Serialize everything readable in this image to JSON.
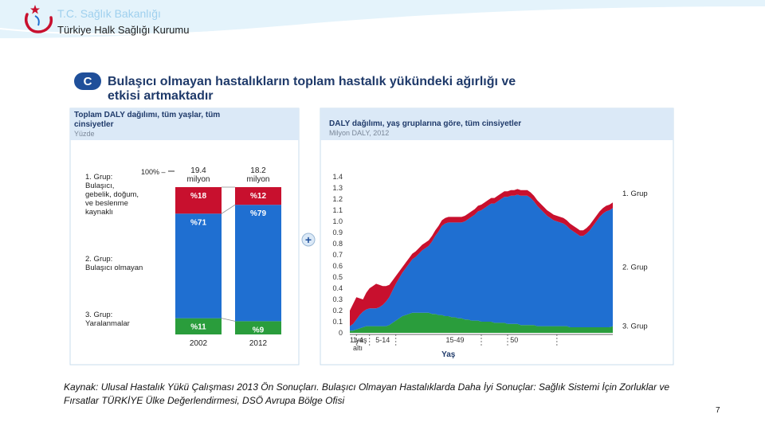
{
  "header": {
    "org_title": "T.C. Sağlık Bakanlığı",
    "org_subtitle": "Türkiye Halk Sağlığı Kurumu"
  },
  "figure": {
    "badge": "C",
    "title_line1": "Bulaşıcı olmayan hastalıkların toplam hastalık yükündeki ağırlığı ve",
    "title_line2": "etkisi artmaktadır",
    "plus_glyph": "+"
  },
  "chart_data": [
    {
      "type": "bar",
      "panel_title_line1": "Toplam DALY dağılımı, tüm yaşlar, tüm",
      "panel_title_line2": "cinsiyetler",
      "panel_unit": "Yüzde",
      "total_label": "100% –",
      "categories": [
        "2002",
        "2012"
      ],
      "totals": [
        "19.4 milyon",
        "18.2 milyon"
      ],
      "total_lines": [
        [
          "19.4",
          "milyon"
        ],
        [
          "18.2",
          "milyon"
        ]
      ],
      "series": [
        {
          "name": "1. Grup: Bulaşıcı, gebelik, doğum, ve beslenme kaynaklı",
          "name_lines": [
            "1. Grup:",
            "Bulaşıcı,",
            "gebelik, doğum,",
            "ve beslenme",
            "kaynaklı"
          ],
          "values": [
            18,
            12
          ],
          "labels": [
            "%18",
            "%12"
          ],
          "color": "#c8102e"
        },
        {
          "name": "2. Grup: Bulaşıcı olmayan",
          "name_lines": [
            "2. Grup:",
            "Bulaşıcı olmayan"
          ],
          "values": [
            71,
            79
          ],
          "labels": [
            "%71",
            "%79"
          ],
          "color": "#1f6fd1"
        },
        {
          "name": "3. Grup: Yaralanmalar",
          "name_lines": [
            "3. Grup:",
            "Yaralanmalar"
          ],
          "values": [
            11,
            9
          ],
          "labels": [
            "%11",
            "%9"
          ],
          "color": "#2a9d3c"
        }
      ]
    },
    {
      "type": "area",
      "panel_title": "DALY dağılımı, yaş gruplarına göre, tüm cinsiyetler",
      "panel_unit": "Milyon DALY, 2012",
      "xlabel": "Yaş",
      "ylim": [
        0,
        1.4
      ],
      "yticks": [
        "0",
        "0.1",
        "0.2",
        "0.3",
        "0.4",
        "0.5",
        "0.6",
        "0.7",
        "0.8",
        "0.9",
        "1.0",
        "1.1",
        "1.2",
        "1.3",
        "1.4"
      ],
      "xtick_labels": [
        {
          "text": "1 yaş",
          "age": 0
        },
        {
          "text": "altı",
          "age": 0
        },
        {
          "text": "1-4",
          "age": 2.5
        },
        {
          "text": "5-14",
          "age": 10
        },
        {
          "text": "15-49",
          "age": 32
        },
        {
          "text": "50",
          "age": 50
        }
      ],
      "x": [
        0,
        1,
        2,
        3,
        4,
        5,
        6,
        7,
        8,
        9,
        10,
        11,
        12,
        13,
        14,
        15,
        16,
        17,
        18,
        19,
        20,
        21,
        22,
        23,
        24,
        25,
        26,
        27,
        28,
        29,
        30,
        31,
        32,
        33,
        34,
        35,
        36,
        37,
        38,
        39,
        40,
        41,
        42,
        43,
        44,
        45,
        46,
        47,
        48,
        49,
        50,
        51,
        52,
        53,
        54,
        55,
        56,
        57,
        58,
        59,
        60,
        61,
        62,
        63,
        64,
        65,
        66,
        67,
        68,
        69,
        70,
        71,
        72,
        73,
        74,
        75,
        76,
        77,
        78,
        79,
        80
      ],
      "series": [
        {
          "name": "3. Grup",
          "color": "#2a9d3c",
          "values": [
            0.02,
            0.02,
            0.03,
            0.04,
            0.05,
            0.06,
            0.06,
            0.06,
            0.06,
            0.06,
            0.06,
            0.06,
            0.07,
            0.09,
            0.11,
            0.13,
            0.15,
            0.16,
            0.17,
            0.18,
            0.18,
            0.18,
            0.18,
            0.18,
            0.18,
            0.17,
            0.17,
            0.16,
            0.16,
            0.15,
            0.15,
            0.14,
            0.14,
            0.13,
            0.13,
            0.12,
            0.12,
            0.11,
            0.11,
            0.11,
            0.1,
            0.1,
            0.1,
            0.1,
            0.09,
            0.09,
            0.09,
            0.09,
            0.08,
            0.08,
            0.08,
            0.08,
            0.07,
            0.07,
            0.07,
            0.07,
            0.07,
            0.06,
            0.06,
            0.06,
            0.06,
            0.06,
            0.06,
            0.06,
            0.06,
            0.06,
            0.06,
            0.05,
            0.05,
            0.05,
            0.05,
            0.05,
            0.05,
            0.05,
            0.05,
            0.05,
            0.05,
            0.05,
            0.05,
            0.05,
            0.06
          ]
        },
        {
          "name": "2. Grup",
          "color": "#1f6fd1",
          "values": [
            0.04,
            0.06,
            0.09,
            0.12,
            0.14,
            0.15,
            0.16,
            0.16,
            0.16,
            0.17,
            0.19,
            0.22,
            0.25,
            0.29,
            0.33,
            0.36,
            0.39,
            0.42,
            0.45,
            0.48,
            0.5,
            0.53,
            0.56,
            0.58,
            0.6,
            0.65,
            0.7,
            0.75,
            0.8,
            0.83,
            0.84,
            0.85,
            0.85,
            0.86,
            0.86,
            0.88,
            0.9,
            0.93,
            0.95,
            0.98,
            1.0,
            1.02,
            1.04,
            1.06,
            1.07,
            1.09,
            1.11,
            1.13,
            1.14,
            1.15,
            1.15,
            1.16,
            1.16,
            1.16,
            1.16,
            1.14,
            1.11,
            1.08,
            1.05,
            1.02,
            0.99,
            0.97,
            0.95,
            0.94,
            0.93,
            0.92,
            0.9,
            0.88,
            0.86,
            0.84,
            0.82,
            0.82,
            0.84,
            0.87,
            0.91,
            0.95,
            0.99,
            1.02,
            1.04,
            1.05,
            1.06
          ]
        },
        {
          "name": "1. Grup",
          "color": "#c8102e",
          "values": [
            0.14,
            0.18,
            0.2,
            0.15,
            0.11,
            0.15,
            0.18,
            0.2,
            0.22,
            0.2,
            0.17,
            0.14,
            0.11,
            0.09,
            0.07,
            0.06,
            0.05,
            0.05,
            0.05,
            0.05,
            0.05,
            0.05,
            0.05,
            0.05,
            0.05,
            0.05,
            0.05,
            0.05,
            0.05,
            0.05,
            0.05,
            0.05,
            0.05,
            0.05,
            0.05,
            0.05,
            0.05,
            0.05,
            0.05,
            0.05,
            0.05,
            0.05,
            0.05,
            0.05,
            0.05,
            0.05,
            0.05,
            0.05,
            0.05,
            0.05,
            0.05,
            0.05,
            0.05,
            0.05,
            0.05,
            0.05,
            0.05,
            0.05,
            0.05,
            0.05,
            0.05,
            0.05,
            0.05,
            0.05,
            0.05,
            0.05,
            0.05,
            0.05,
            0.05,
            0.05,
            0.05,
            0.05,
            0.05,
            0.05,
            0.05,
            0.05,
            0.05,
            0.05,
            0.05,
            0.05,
            0.05
          ]
        }
      ]
    }
  ],
  "source": {
    "text": "Kaynak: Ulusal Hastalık Yükü Çalışması 2013 Ön Sonuçları. Bulaşıcı Olmayan Hastalıklarda Daha  İyi Sonuçlar: Sağlık Sistemi İçin Zorluklar ve Fırsatlar TÜRKİYE Ülke Değerlendirmesi, DSÖ Avrupa Bölge Ofisi"
  },
  "page": {
    "number": "7"
  },
  "colors": {
    "header_bg": "#dff0fb",
    "accent_blue": "#1f6fd1",
    "accent_red": "#c8102e",
    "accent_green": "#2a9d3c",
    "panel_header": "#dbe9f7"
  }
}
